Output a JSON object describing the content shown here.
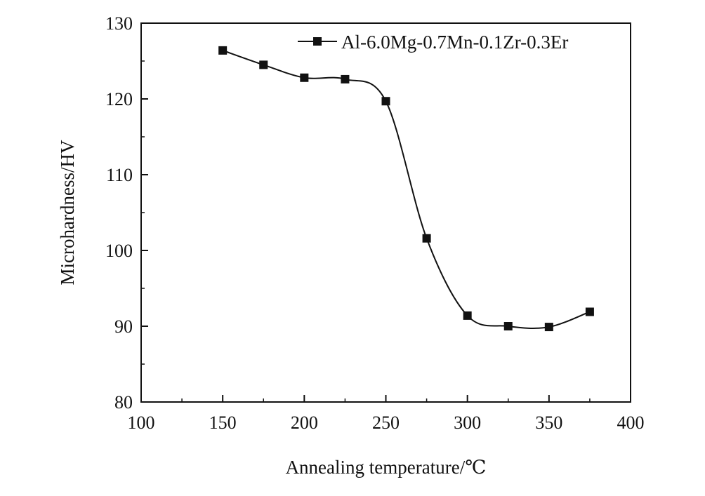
{
  "chart_data": {
    "type": "line",
    "title": "",
    "xlabel": "Annealing temperature/℃",
    "ylabel": "Microhardness/HV",
    "xlim": [
      100,
      400
    ],
    "ylim": [
      80,
      130
    ],
    "xticks": [
      100,
      150,
      200,
      250,
      300,
      350,
      400
    ],
    "yticks": [
      80,
      90,
      100,
      110,
      120,
      130
    ],
    "grid": false,
    "legend_position": "top-right",
    "series": [
      {
        "name": "Al-6.0Mg-0.7Mn-0.1Zr-0.3Er",
        "marker": "square",
        "smooth": true,
        "color": "#111111",
        "x": [
          150,
          175,
          200,
          225,
          250,
          275,
          300,
          325,
          350,
          375
        ],
        "y": [
          126.4,
          124.5,
          122.8,
          122.6,
          119.7,
          101.6,
          91.4,
          90.0,
          89.9,
          91.9
        ]
      }
    ]
  }
}
